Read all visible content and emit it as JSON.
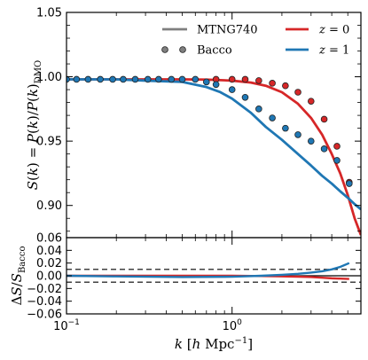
{
  "chart_data": [
    {
      "type": "line",
      "panel": "top",
      "x_scale": "log",
      "xlim": [
        0.1,
        6.0
      ],
      "ylim": [
        0.875,
        1.05
      ],
      "grid": false,
      "ylabel": "S(k) = P(k)/P(k)_DMO",
      "ytick_labels": [
        "0.90",
        "0.95",
        "1.00",
        "1.05"
      ],
      "yticks": [
        0.9,
        0.95,
        1.0,
        1.05
      ],
      "legend": {
        "placement": "top-right",
        "style_entries": [
          {
            "label": "MTNG740",
            "marker": "line",
            "color": "#7f7f7f"
          },
          {
            "label": "Bacco",
            "marker": "dots",
            "color": "#7f7f7f"
          }
        ],
        "series_entries": [
          {
            "label": "z = 0",
            "color": "#d62728"
          },
          {
            "label": "z = 1",
            "color": "#1f77b4"
          }
        ]
      },
      "series": [
        {
          "name": "MTNG740 z=0",
          "style": "line",
          "color": "#d62728",
          "x": [
            0.1,
            0.15,
            0.2,
            0.3,
            0.5,
            0.7,
            1.0,
            1.3,
            1.6,
            2.0,
            2.5,
            3.0,
            3.5,
            4.0,
            4.5,
            5.0,
            5.5,
            6.0
          ],
          "y": [
            0.998,
            0.998,
            0.998,
            0.998,
            0.998,
            0.9978,
            0.997,
            0.9955,
            0.993,
            0.988,
            0.979,
            0.968,
            0.955,
            0.94,
            0.925,
            0.908,
            0.89,
            0.877
          ]
        },
        {
          "name": "MTNG740 z=1",
          "style": "line",
          "color": "#1f77b4",
          "x": [
            0.1,
            0.15,
            0.2,
            0.3,
            0.5,
            0.7,
            0.85,
            1.0,
            1.3,
            1.6,
            2.0,
            2.5,
            3.0,
            3.5,
            4.0,
            4.5,
            5.0,
            5.5,
            6.0
          ],
          "y": [
            0.998,
            0.998,
            0.998,
            0.997,
            0.996,
            0.992,
            0.988,
            0.983,
            0.972,
            0.961,
            0.951,
            0.94,
            0.931,
            0.923,
            0.917,
            0.911,
            0.906,
            0.901,
            0.897
          ]
        },
        {
          "name": "Bacco z=0",
          "style": "dots",
          "color": "#d62728",
          "x": [
            0.8,
            1.0,
            1.2,
            1.45,
            1.75,
            2.1,
            2.5,
            3.0,
            3.6,
            4.3,
            5.1
          ],
          "y": [
            0.998,
            0.998,
            0.998,
            0.997,
            0.995,
            0.993,
            0.988,
            0.981,
            0.967,
            0.946,
            0.918
          ]
        },
        {
          "name": "Bacco z=1",
          "style": "dots",
          "color": "#1f77b4",
          "x": [
            0.1,
            0.115,
            0.135,
            0.16,
            0.19,
            0.22,
            0.26,
            0.31,
            0.36,
            0.43,
            0.5,
            0.6,
            0.7,
            0.8,
            1.0,
            1.2,
            1.45,
            1.75,
            2.1,
            2.5,
            3.0,
            3.6,
            4.3,
            5.1
          ],
          "y": [
            0.998,
            0.998,
            0.998,
            0.998,
            0.998,
            0.998,
            0.998,
            0.998,
            0.998,
            0.998,
            0.998,
            0.998,
            0.996,
            0.994,
            0.99,
            0.984,
            0.975,
            0.968,
            0.96,
            0.955,
            0.95,
            0.944,
            0.935,
            0.917
          ]
        }
      ]
    },
    {
      "type": "line",
      "panel": "bottom",
      "x_scale": "log",
      "xlim": [
        0.1,
        6.0
      ],
      "ylim": [
        -0.06,
        0.06
      ],
      "grid": false,
      "xlabel": "k [h Mpc^-1]",
      "ylabel": "ΔS / S_Bacco",
      "xtick_labels": [
        "10^-1",
        "10^0"
      ],
      "ytick_labels": [
        "0.06",
        "0.04",
        "0.02",
        "0.00",
        "−0.02",
        "−0.04",
        "−0.06"
      ],
      "yticks": [
        0.06,
        0.04,
        0.02,
        0.0,
        -0.02,
        -0.04,
        -0.06
      ],
      "reference_lines": [
        {
          "y": 0.01,
          "style": "dashed"
        },
        {
          "y": -0.01,
          "style": "dashed"
        },
        {
          "y": 0.0,
          "style": "solid"
        }
      ],
      "series": [
        {
          "name": "z=0",
          "color": "#d62728",
          "x": [
            0.1,
            0.2,
            0.5,
            1.0,
            1.5,
            2.0,
            2.5,
            3.0,
            3.5,
            4.0,
            4.5,
            5.1
          ],
          "y": [
            0.0,
            0.0,
            0.0,
            0.0,
            -0.0005,
            -0.001,
            -0.0015,
            -0.002,
            -0.003,
            -0.004,
            -0.0045,
            -0.005
          ]
        },
        {
          "name": "z=1",
          "color": "#1f77b4",
          "x": [
            0.1,
            0.2,
            0.5,
            1.0,
            1.5,
            2.0,
            2.5,
            3.0,
            3.5,
            4.0,
            4.5,
            5.1
          ],
          "y": [
            0.0,
            -0.001,
            -0.002,
            -0.0015,
            0.0,
            0.0015,
            0.003,
            0.005,
            0.007,
            0.01,
            0.014,
            0.02
          ]
        }
      ]
    }
  ]
}
